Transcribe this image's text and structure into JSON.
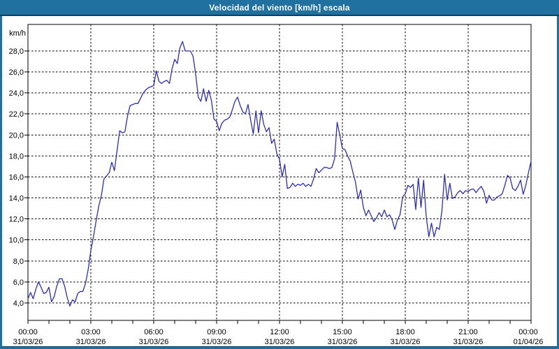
{
  "chart_data": {
    "type": "line",
    "title": "Velocidad del viento [km/h] escala",
    "ylabel": "km/h",
    "legend": "none",
    "grid": "dashed",
    "y_ticks": [
      4,
      6,
      8,
      10,
      12,
      14,
      16,
      18,
      20,
      22,
      24,
      26,
      28
    ],
    "y_tick_labels": [
      "4,0",
      "6,0",
      "8,0",
      "10,0",
      "12,0",
      "14,0",
      "16,0",
      "18,0",
      "20,0",
      "22,0",
      "24,0",
      "26,0",
      "28,0"
    ],
    "ylim": [
      2.3,
      30.3
    ],
    "xlim_hours": [
      0,
      24
    ],
    "x_minor_tick_every_hours": 1,
    "x_tick_hours": [
      0,
      3,
      6,
      9,
      12,
      15,
      18,
      21,
      24
    ],
    "x_tick_times": [
      "00:00",
      "03:00",
      "06:00",
      "09:00",
      "12:00",
      "15:00",
      "18:00",
      "21:00",
      "00:00"
    ],
    "x_tick_dates": [
      "31/03/26",
      "31/03/26",
      "31/03/26",
      "31/03/26",
      "31/03/26",
      "31/03/26",
      "31/03/26",
      "31/03/26",
      "01/04/26"
    ],
    "sample_interval_hours": 0.125,
    "colors": {
      "series": "#2b2dc1",
      "grid": "#000000",
      "axis": "#000000",
      "plot_bg": "#ffffff",
      "frame": "#2070a0",
      "title_bar_bg": "#2070a0",
      "title_text": "#ffffff"
    },
    "values": [
      4.4,
      5.0,
      4.4,
      5.3,
      6.0,
      5.5,
      4.9,
      5.0,
      5.5,
      4.1,
      4.6,
      5.6,
      6.3,
      6.3,
      5.6,
      4.5,
      3.7,
      4.3,
      4.1,
      4.9,
      5.1,
      5.1,
      5.9,
      7.2,
      9.0,
      10.3,
      11.8,
      13.2,
      14.2,
      15.8,
      16.1,
      16.4,
      17.4,
      16.6,
      18.5,
      20.4,
      20.2,
      20.3,
      21.8,
      22.8,
      22.9,
      23.0,
      23.0,
      23.5,
      24.0,
      24.3,
      24.5,
      24.6,
      24.7,
      26.1,
      25.1,
      24.9,
      25.1,
      25.2,
      24.9,
      26.3,
      27.2,
      26.8,
      28.3,
      28.9,
      28.0,
      28.0,
      28.0,
      27.5,
      25.8,
      23.6,
      23.2,
      24.4,
      23.2,
      24.25,
      23.3,
      21.5,
      21.3,
      20.4,
      21.1,
      21.4,
      21.5,
      21.7,
      22.4,
      23.2,
      23.6,
      22.8,
      22.2,
      22.0,
      22.9,
      21.4,
      20.1,
      22.3,
      20.2,
      22.3,
      21.0,
      20.3,
      20.7,
      19.2,
      19.6,
      18.2,
      17.7,
      16.0,
      17.2,
      14.9,
      15.0,
      15.4,
      15.1,
      15.3,
      15.2,
      15.4,
      15.1,
      15.3,
      15.1,
      15.8,
      16.8,
      16.4,
      16.65,
      16.9,
      16.9,
      16.8,
      16.9,
      17.7,
      21.2,
      20.0,
      18.7,
      18.6,
      18.0,
      17.5,
      16.45,
      15.5,
      13.9,
      14.75,
      13.1,
      12.3,
      12.85,
      12.3,
      11.75,
      12.1,
      12.6,
      12.2,
      12.85,
      12.2,
      12.4,
      11.9,
      11.0,
      11.9,
      12.4,
      14.1,
      14.4,
      15.2,
      15.0,
      15.3,
      12.9,
      15.9,
      13.1,
      15.7,
      12.2,
      10.3,
      11.6,
      10.3,
      11.2,
      11.0,
      12.8,
      16.25,
      13.8,
      15.4,
      13.95,
      14.1,
      14.5,
      14.7,
      14.4,
      14.7,
      14.6,
      14.8,
      14.85,
      14.5,
      14.85,
      15.1,
      14.6,
      13.5,
      14.25,
      13.8,
      13.8,
      14.1,
      14.2,
      14.4,
      15.2,
      16.15,
      15.9,
      14.9,
      14.7,
      15.1,
      15.7,
      14.35,
      15.2,
      16.4,
      17.5
    ]
  }
}
